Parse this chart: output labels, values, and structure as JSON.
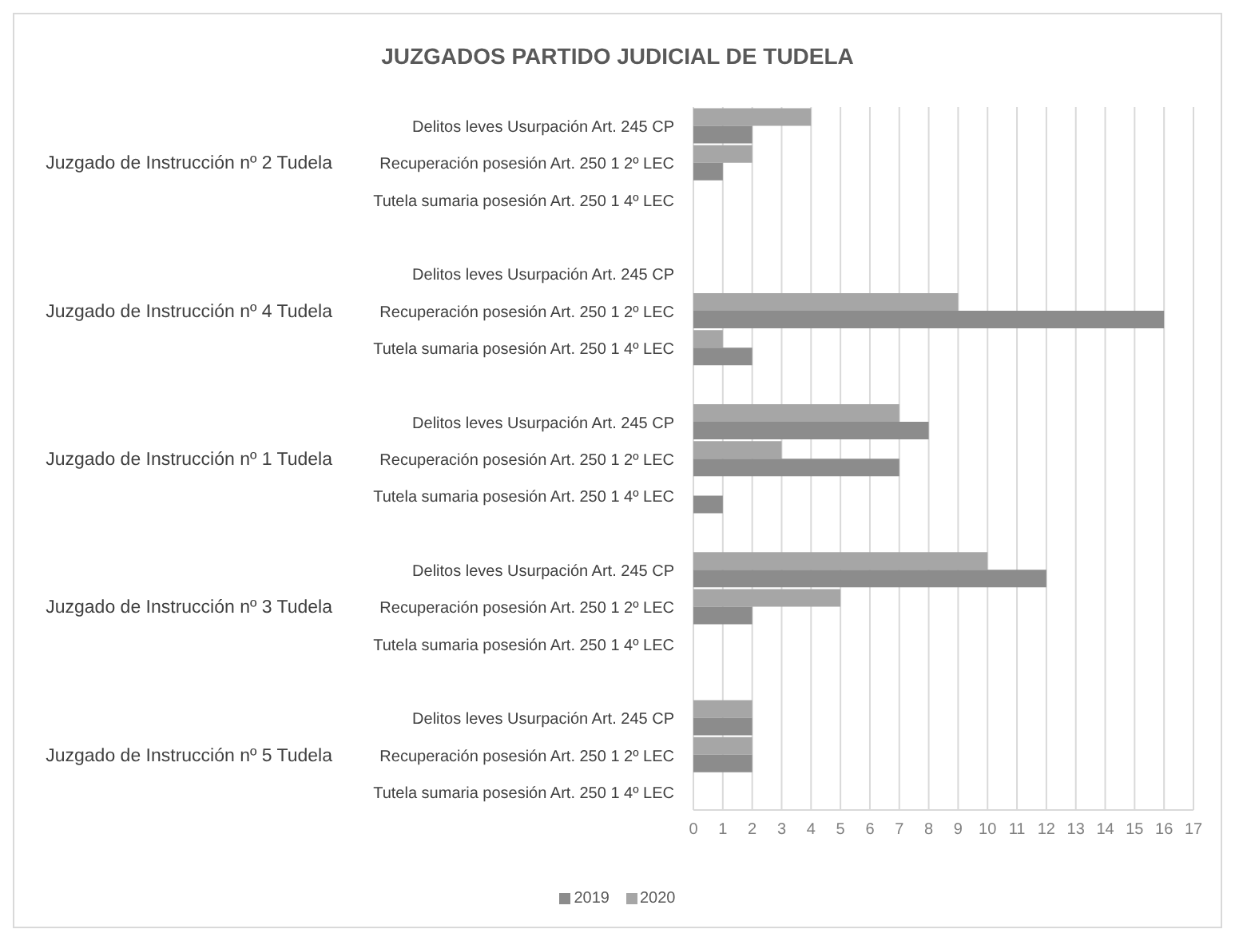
{
  "chart_data": {
    "type": "bar",
    "orientation": "horizontal",
    "title": "JUZGADOS PARTIDO JUDICIAL DE TUDELA",
    "categories": [
      "Delitos leves Usurpación Art. 245 CP",
      "Recuperación posesión Art. 250 1 2º LEC",
      "Tutela sumaria posesión Art. 250 1 4º LEC",
      "Delitos leves Usurpación Art. 245 CP",
      "Recuperación posesión Art. 250 1 2º LEC",
      "Tutela sumaria posesión Art. 250 1 4º LEC",
      "Delitos leves Usurpación Art. 245 CP",
      "Recuperación posesión Art. 250 1 2º LEC",
      "Tutela sumaria posesión Art. 250 1 4º LEC",
      "Delitos leves Usurpación Art. 245 CP",
      "Recuperación posesión Art. 250 1 2º LEC",
      "Tutela sumaria posesión Art. 250 1 4º LEC",
      "Delitos leves Usurpación Art. 245 CP",
      "Recuperación posesión Art. 250 1 2º LEC",
      "Tutela sumaria posesión Art. 250 1 4º LEC"
    ],
    "annotations": [
      "Juzgado de Instrucción nº 2 Tudela",
      "Juzgado de Instrucción nº 4 Tudela",
      "Juzgado de Instrucción nº 1 Tudela",
      "Juzgado de Instrucción nº 3 Tudela",
      "Juzgado de Instrucción nº 5 Tudela"
    ],
    "series": [
      {
        "name": "2019",
        "color": "#8c8c8c",
        "values": [
          2,
          1,
          0,
          0,
          16,
          2,
          8,
          7,
          1,
          12,
          2,
          0,
          2,
          2,
          0
        ]
      },
      {
        "name": "2020",
        "color": "#a6a6a6",
        "values": [
          4,
          2,
          0,
          0,
          9,
          1,
          7,
          3,
          0,
          10,
          5,
          0,
          2,
          2,
          0
        ]
      }
    ],
    "xlim": [
      0,
      17
    ],
    "xticks": [
      0,
      1,
      2,
      3,
      4,
      5,
      6,
      7,
      8,
      9,
      10,
      11,
      12,
      13,
      14,
      15,
      16,
      17
    ],
    "grid": "x",
    "legend": "bottom"
  }
}
